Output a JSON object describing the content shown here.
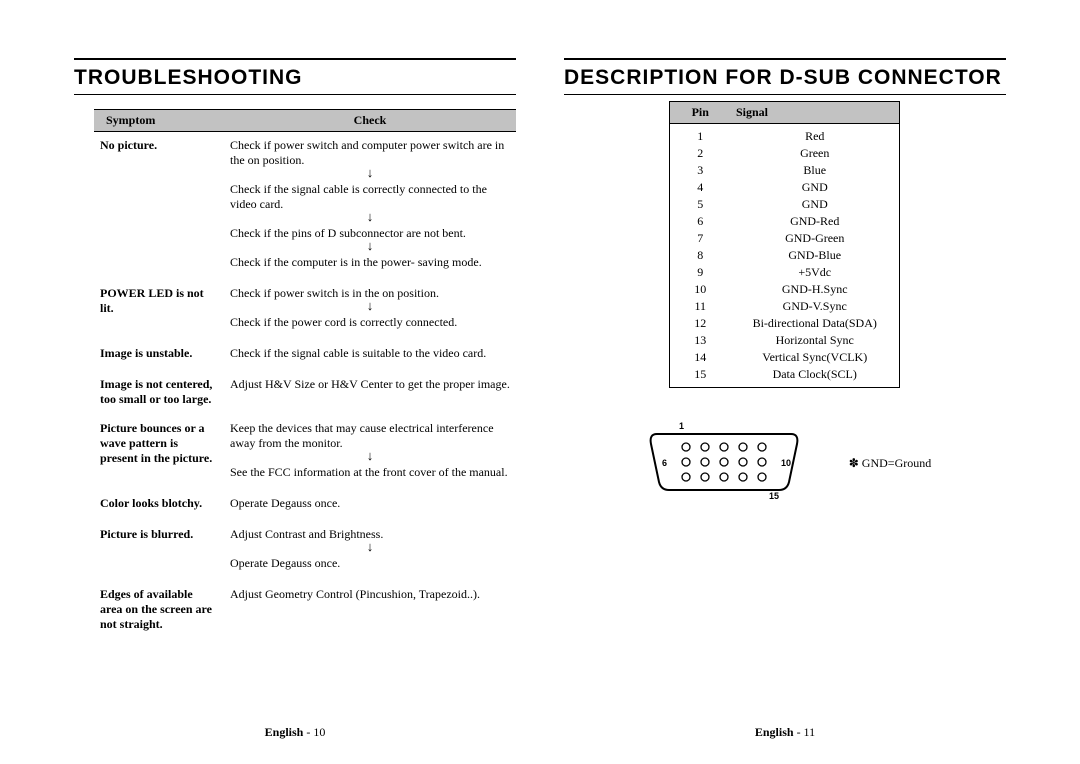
{
  "left": {
    "heading": "TROUBLESHOOTING",
    "headers": {
      "symptom": "Symptom",
      "check": "Check"
    },
    "rows": [
      {
        "symptom": "No picture.",
        "checks": [
          "Check if power switch and computer power switch are in the on position.",
          "Check if the signal cable is correctly connected to the video card.",
          "Check if the pins of D subconnector are not bent.",
          "Check if the computer is in the power- saving mode."
        ],
        "arrows_after": [
          true,
          true,
          true,
          false
        ]
      },
      {
        "symptom": "POWER LED is not lit.",
        "checks": [
          "Check if power switch is in the on position.",
          "Check if the power cord is correctly connected."
        ],
        "arrows_after": [
          true,
          false
        ]
      },
      {
        "symptom": "Image is unstable.",
        "checks": [
          "Check if the signal cable is suitable to the video card."
        ],
        "arrows_after": [
          false
        ]
      },
      {
        "symptom": "Image is not centered, too small or too large.",
        "checks": [
          "Adjust H&V Size or H&V Center to get the proper image."
        ],
        "arrows_after": [
          false
        ]
      },
      {
        "symptom": "Picture bounces or a wave pattern is present in the picture.",
        "checks": [
          "Keep the devices that may cause electrical interference away from the monitor.",
          "See the FCC information at the front cover of the manual."
        ],
        "arrows_after": [
          true,
          false
        ]
      },
      {
        "symptom": "Color looks blotchy.",
        "checks": [
          "Operate Degauss once."
        ],
        "arrows_after": [
          false
        ]
      },
      {
        "symptom": "Picture is blurred.",
        "checks": [
          "Adjust Contrast and Brightness.",
          "Operate Degauss once."
        ],
        "arrows_after": [
          true,
          false
        ]
      },
      {
        "symptom": "Edges of available area on the screen are not straight.",
        "checks": [
          "Adjust Geometry Control (Pincushion, Trapezoid..)."
        ],
        "arrows_after": [
          false
        ]
      }
    ],
    "footer_label": "English",
    "footer_page": " - 10"
  },
  "right": {
    "heading": "DESCRIPTION FOR D-SUB CONNECTOR",
    "headers": {
      "pin": "Pin",
      "signal": "Signal"
    },
    "pins": [
      {
        "n": "1",
        "s": "Red"
      },
      {
        "n": "2",
        "s": "Green"
      },
      {
        "n": "3",
        "s": "Blue"
      },
      {
        "n": "4",
        "s": "GND"
      },
      {
        "n": "5",
        "s": "GND"
      },
      {
        "n": "6",
        "s": "GND-Red"
      },
      {
        "n": "7",
        "s": "GND-Green"
      },
      {
        "n": "8",
        "s": "GND-Blue"
      },
      {
        "n": "9",
        "s": "+5Vdc"
      },
      {
        "n": "10",
        "s": "GND-H.Sync"
      },
      {
        "n": "11",
        "s": "GND-V.Sync"
      },
      {
        "n": "12",
        "s": "Bi-directional Data(SDA)"
      },
      {
        "n": "13",
        "s": "Horizontal Sync"
      },
      {
        "n": "14",
        "s": "Vertical Sync(VCLK)"
      },
      {
        "n": "15",
        "s": "Data Clock(SCL)"
      }
    ],
    "connector_labels": {
      "p1": "1",
      "p6": "6",
      "p10": "10",
      "p15": "15"
    },
    "note": "✽ GND=Ground",
    "footer_label": "English",
    "footer_page": " - 11"
  },
  "colors": {
    "header_bg": "#c2c2c2",
    "rule": "#000000",
    "text": "#000000",
    "page_bg": "#ffffff"
  },
  "typography": {
    "heading_family": "Arial",
    "heading_size_pt": 16,
    "body_family": "Times New Roman",
    "body_size_pt": 9
  }
}
